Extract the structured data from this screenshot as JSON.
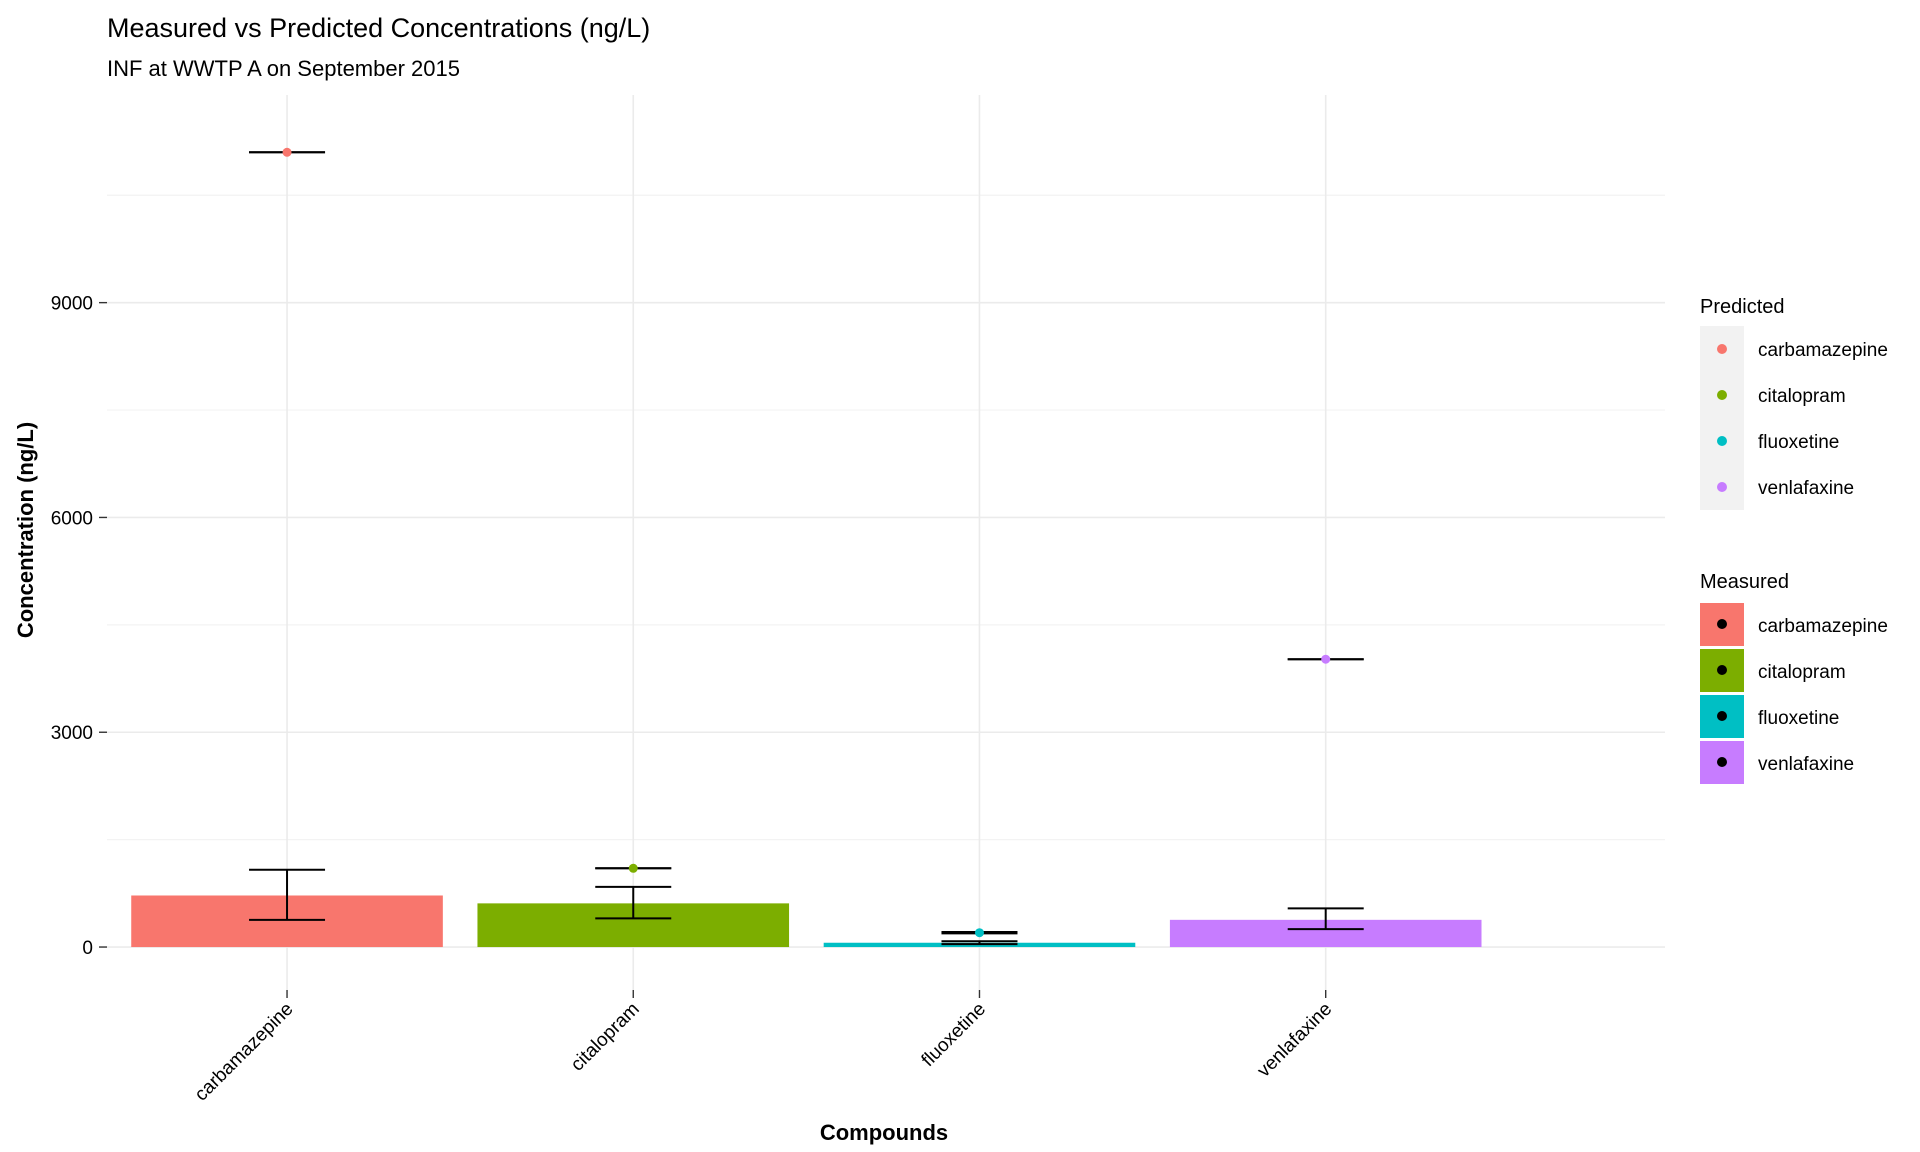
{
  "chart_data": {
    "type": "bar",
    "title": "Measured vs Predicted Concentrations (ng/L)",
    "subtitle": "INF at WWTP A on September 2015",
    "xlabel": "Compounds",
    "ylabel": "Concentration (ng/L)",
    "ylim": [
      -600,
      11900
    ],
    "yticks": [
      0,
      3000,
      6000,
      9000
    ],
    "categories": [
      "carbamazepine",
      "citalopram",
      "fluoxetine",
      "venlafaxine"
    ],
    "colors": [
      "#f8766d",
      "#7cae00",
      "#00bfc4",
      "#c77cff"
    ],
    "measured": {
      "values": [
        720,
        610,
        60,
        380
      ],
      "error_low": [
        380,
        400,
        40,
        250
      ],
      "error_high": [
        1080,
        840,
        80,
        540
      ]
    },
    "predicted": {
      "values": [
        11100,
        1100,
        200,
        4020
      ],
      "error_low": [
        11100,
        1100,
        190,
        4020
      ],
      "error_high": [
        11100,
        1100,
        210,
        4020
      ]
    },
    "legend": {
      "placement": "right",
      "predicted_title": "Predicted",
      "measured_title": "Measured"
    },
    "grid": true
  }
}
